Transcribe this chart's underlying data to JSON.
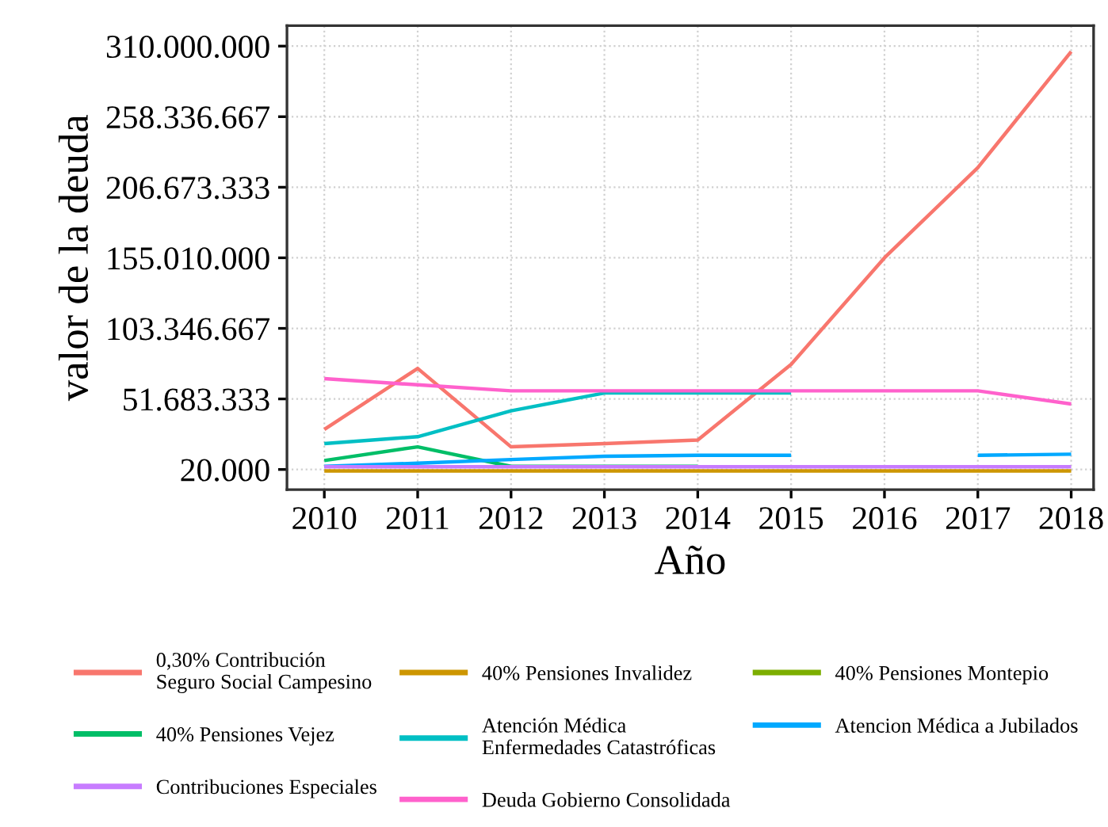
{
  "chart_data": {
    "type": "line",
    "xlabel": "Año",
    "ylabel": "valor de la deuda",
    "x": [
      2010,
      2011,
      2012,
      2013,
      2014,
      2015,
      2016,
      2017,
      2018
    ],
    "xlim": [
      2009.6,
      2018.24
    ],
    "xticks": [
      2010,
      2011,
      2012,
      2013,
      2014,
      2015,
      2016,
      2017,
      2018
    ],
    "ylim": [
      -14700000,
      325000000
    ],
    "yticks": [
      {
        "value": 20000,
        "label": "20.000"
      },
      {
        "value": 51683333,
        "label": "51.683.333"
      },
      {
        "value": 103346667,
        "label": "103.346.667"
      },
      {
        "value": 155010000,
        "label": "155.010.000"
      },
      {
        "value": 206673333,
        "label": "206.673.333"
      },
      {
        "value": 258336667,
        "label": "258.336.667"
      },
      {
        "value": 310000000,
        "label": "310.000.000"
      }
    ],
    "grid": true,
    "legend": "bottom",
    "line_style": "solid",
    "series": [
      {
        "name": "0,30% Contribución\nSeguro Social Campesino",
        "color": "#f8766d",
        "values": [
          29400000,
          74000000,
          16600000,
          19000000,
          21600000,
          77000000,
          155000000,
          221000000,
          306000000
        ]
      },
      {
        "name": "40% Pensiones Invalidez",
        "color": "#cd9600",
        "values": [
          -1000000,
          -1000000,
          -1000000,
          -1000000,
          -1000000,
          -1000000,
          -1000000,
          -1000000,
          -1000000
        ]
      },
      {
        "name": "40% Pensiones Montepio",
        "color": "#7cae00",
        "values": [
          null,
          null,
          null,
          null,
          null,
          null,
          null,
          null,
          null
        ]
      },
      {
        "name": "40% Pensiones Vejez",
        "color": "#00be67",
        "values": [
          6600000,
          16600000,
          2300000,
          2300000,
          2300000,
          null,
          null,
          null,
          null
        ]
      },
      {
        "name": "Atención Médica\nEnfermedades Catastróficas",
        "color": "#00bfc4",
        "values": [
          19000000,
          24000000,
          43000000,
          56000000,
          56000000,
          56000000,
          null,
          null,
          null
        ]
      },
      {
        "name": "Atencion Médica a Jubilados",
        "color": "#00a9ff",
        "values": [
          2300000,
          4600000,
          7300000,
          9700000,
          10400000,
          10400000,
          null,
          10400000,
          11200000
        ]
      },
      {
        "name": "Contribuciones Especiales",
        "color": "#c77cff",
        "values": [
          2000000,
          2000000,
          2000000,
          2000000,
          2000000,
          2000000,
          2000000,
          2000000,
          2000000
        ]
      },
      {
        "name": "Deuda Gobierno Consolidada",
        "color": "#ff61cc",
        "values": [
          66500000,
          62000000,
          57600000,
          57600000,
          57600000,
          57600000,
          57600000,
          57600000,
          48000000
        ]
      }
    ]
  }
}
